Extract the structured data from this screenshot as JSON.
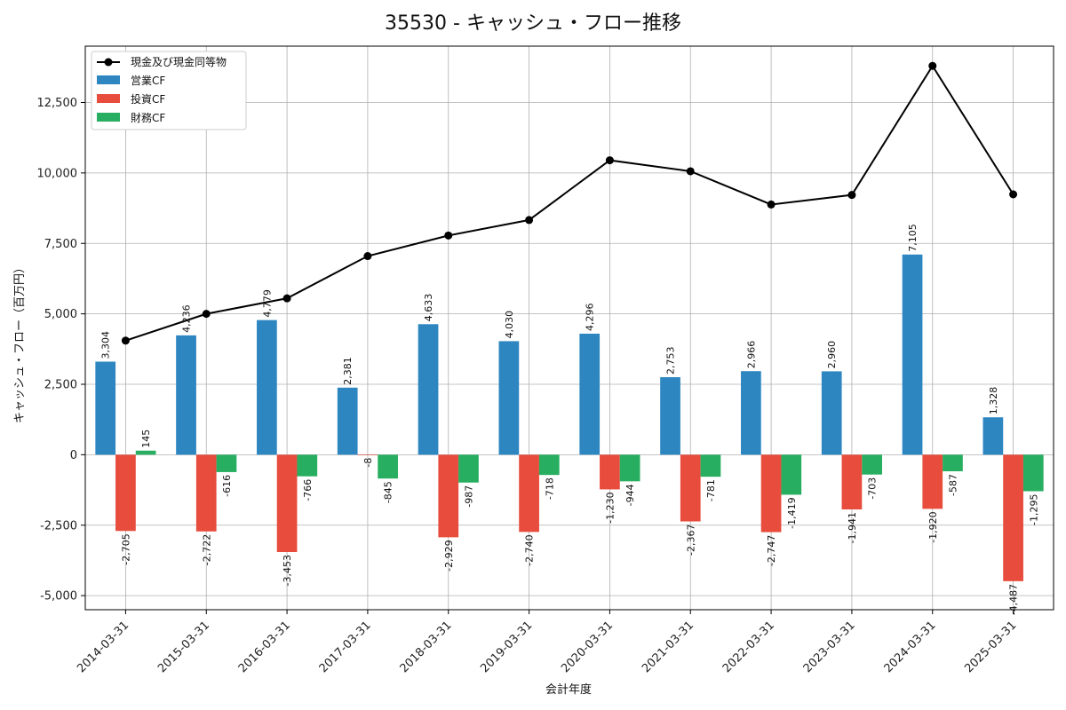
{
  "chart_data": {
    "type": "bar+line",
    "title": "35530 - キャッシュ・フロー推移",
    "xlabel": "会計年度",
    "ylabel": "キャッシュ・フロー（百万円）",
    "categories": [
      "2014-03-31",
      "2015-03-31",
      "2016-03-31",
      "2017-03-31",
      "2018-03-31",
      "2019-03-31",
      "2020-03-31",
      "2021-03-31",
      "2022-03-31",
      "2023-03-31",
      "2024-03-31",
      "2025-03-31"
    ],
    "ylim": [
      -5500,
      14500
    ],
    "yticks": [
      -5000,
      -2500,
      0,
      2500,
      5000,
      7500,
      10000,
      12500
    ],
    "ytick_labels": [
      "-5,000",
      "-2,500",
      "0",
      "2,500",
      "5,000",
      "7,500",
      "10,000",
      "12,500"
    ],
    "grid": true,
    "legend_position": "top-left",
    "series": [
      {
        "name": "営業CF",
        "kind": "bar",
        "color": "#2e86c1",
        "values": [
          3304,
          4236,
          4779,
          2381,
          4633,
          4030,
          4296,
          2753,
          2966,
          2960,
          7105,
          1328
        ],
        "labels": [
          "3,304",
          "4,236",
          "4,779",
          "2,381",
          "4,633",
          "4,030",
          "4,296",
          "2,753",
          "2,966",
          "2,960",
          "7,105",
          "1,328"
        ]
      },
      {
        "name": "投資CF",
        "kind": "bar",
        "color": "#e74c3c",
        "values": [
          -2705,
          -2722,
          -3453,
          -8,
          -2929,
          -2740,
          -1230,
          -2367,
          -2747,
          -1941,
          -1920,
          -4487
        ],
        "labels": [
          "-2,705",
          "-2,722",
          "-3,453",
          "-8",
          "-2,929",
          "-2,740",
          "-1,230",
          "-2,367",
          "-2,747",
          "-1,941",
          "-1,920",
          "-4,487"
        ]
      },
      {
        "name": "財務CF",
        "kind": "bar",
        "color": "#27ae60",
        "values": [
          145,
          -616,
          -766,
          -845,
          -987,
          -718,
          -944,
          -781,
          -1419,
          -703,
          -587,
          -1295
        ],
        "labels": [
          "145",
          "-616",
          "-766",
          "-845",
          "-987",
          "-718",
          "-944",
          "-781",
          "-1,419",
          "-703",
          "-587",
          "-1,295"
        ]
      },
      {
        "name": "現金及び現金同等物",
        "kind": "line",
        "color": "#000000",
        "values": [
          4050,
          5000,
          5550,
          7050,
          7780,
          8330,
          10450,
          10060,
          8880,
          9220,
          13800,
          9240
        ]
      }
    ]
  }
}
